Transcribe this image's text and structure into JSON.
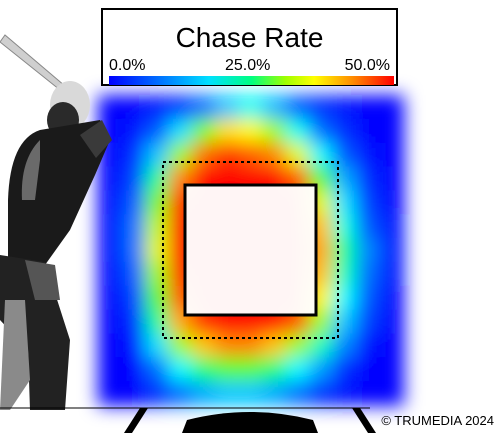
{
  "chart_data": {
    "type": "heatmap",
    "title": "Chase Rate",
    "metric": "Chase Rate",
    "colorbar": {
      "min": 0.0,
      "max": 50.0,
      "ticks": [
        "0.0%",
        "25.0%",
        "50.0%"
      ],
      "colors": [
        "#0000ff",
        "#00a0ff",
        "#00ffff",
        "#00ff80",
        "#80ff00",
        "#ffff00",
        "#ffa000",
        "#ff0000"
      ]
    },
    "strike_zone": "solid black box, no chase values inside (white)",
    "shadow_zone": "dotted black box",
    "grid_resolution": "approximate intensity map",
    "rows": [
      [
        0,
        0,
        1,
        2,
        5,
        10,
        15,
        9,
        4,
        2,
        1,
        0,
        0
      ],
      [
        0,
        1,
        4,
        12,
        28,
        38,
        36,
        30,
        15,
        5,
        2,
        0,
        0
      ],
      [
        0,
        2,
        10,
        30,
        45,
        48,
        46,
        44,
        34,
        14,
        4,
        1,
        0
      ],
      [
        0,
        3,
        20,
        44,
        50,
        50,
        50,
        50,
        46,
        26,
        8,
        2,
        0
      ],
      [
        0,
        4,
        28,
        48,
        50,
        50,
        50,
        50,
        50,
        34,
        12,
        3,
        0
      ],
      [
        0,
        5,
        32,
        50,
        50,
        50,
        50,
        50,
        50,
        40,
        16,
        4,
        1
      ],
      [
        0,
        5,
        34,
        50,
        50,
        50,
        50,
        50,
        50,
        42,
        20,
        6,
        1
      ],
      [
        0,
        4,
        30,
        48,
        50,
        50,
        50,
        50,
        50,
        40,
        18,
        5,
        1
      ],
      [
        0,
        3,
        26,
        46,
        50,
        50,
        50,
        50,
        50,
        36,
        14,
        4,
        0
      ],
      [
        0,
        2,
        20,
        42,
        48,
        50,
        50,
        50,
        46,
        30,
        10,
        3,
        0
      ],
      [
        0,
        1,
        12,
        30,
        40,
        44,
        44,
        40,
        30,
        18,
        6,
        1,
        0
      ],
      [
        0,
        0,
        5,
        14,
        22,
        26,
        26,
        22,
        14,
        7,
        2,
        0,
        0
      ],
      [
        0,
        0,
        2,
        5,
        8,
        10,
        10,
        8,
        5,
        2,
        1,
        0,
        0
      ]
    ]
  },
  "legend": {
    "title": "Chase Rate",
    "min_label": "0.0%",
    "mid_label": "25.0%",
    "max_label": "50.0%"
  },
  "footer": {
    "copyright": "© TRUMEDIA 2024"
  },
  "figure": {
    "batter_silhouette": "right-handed batter in stance, grayscale",
    "home_plate": "black home plate outline"
  }
}
